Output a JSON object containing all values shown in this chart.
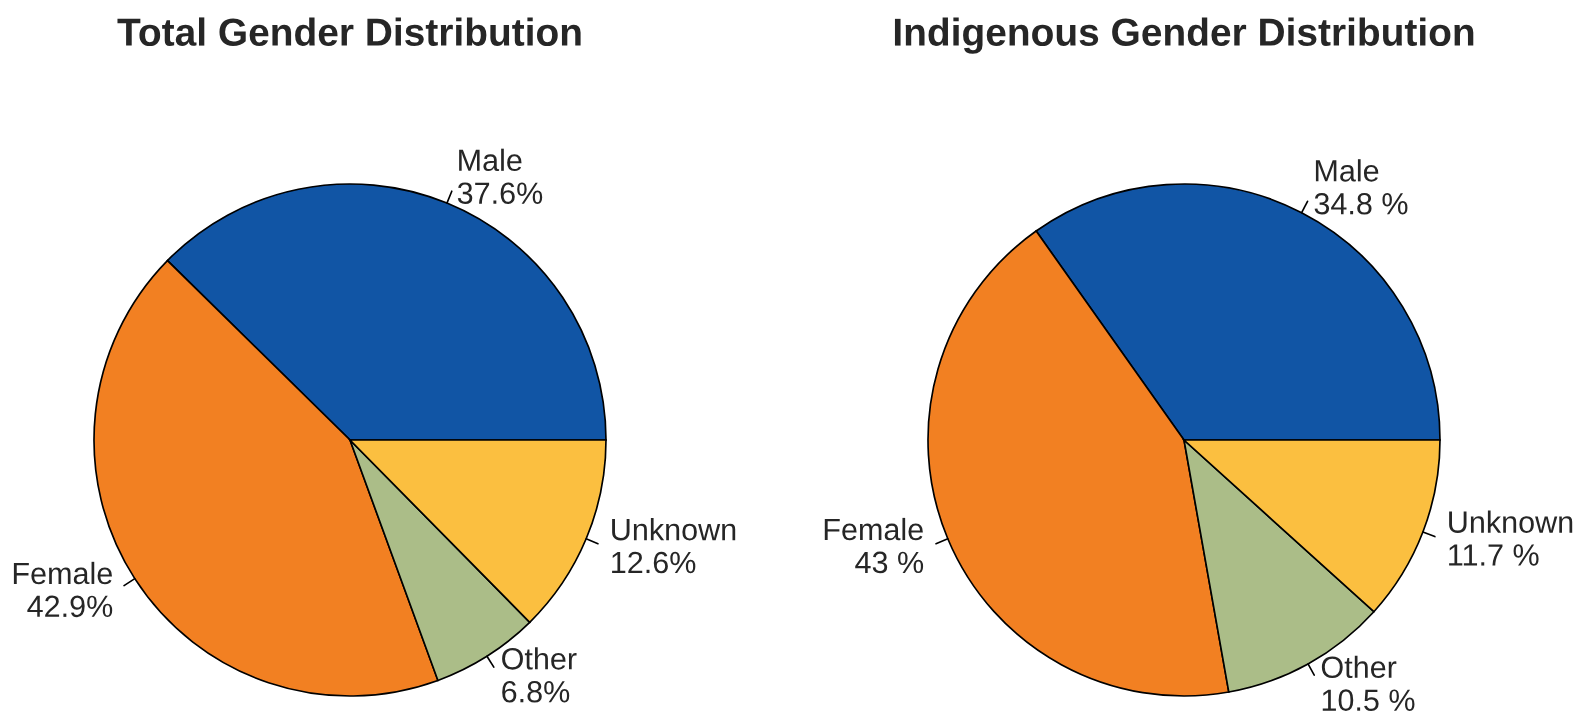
{
  "chart_data": [
    {
      "type": "pie",
      "title": "Total Gender Distribution",
      "categories": [
        "Male",
        "Female",
        "Other",
        "Unknown"
      ],
      "values": [
        37.6,
        42.9,
        6.8,
        12.6
      ],
      "value_labels": [
        "37.6%",
        "42.9%",
        "6.8%",
        "12.6%"
      ],
      "colors": [
        "#1155a5",
        "#f28022",
        "#abbd88",
        "#fbbf40"
      ]
    },
    {
      "type": "pie",
      "title": "Indigenous Gender Distribution",
      "categories": [
        "Male",
        "Female",
        "Other",
        "Unknown"
      ],
      "values": [
        34.8,
        43,
        10.5,
        11.7
      ],
      "value_labels": [
        "34.8 %",
        "43 %",
        "10.5 %",
        "11.7 %"
      ],
      "colors": [
        "#1155a5",
        "#f28022",
        "#abbd88",
        "#fbbf40"
      ]
    }
  ]
}
